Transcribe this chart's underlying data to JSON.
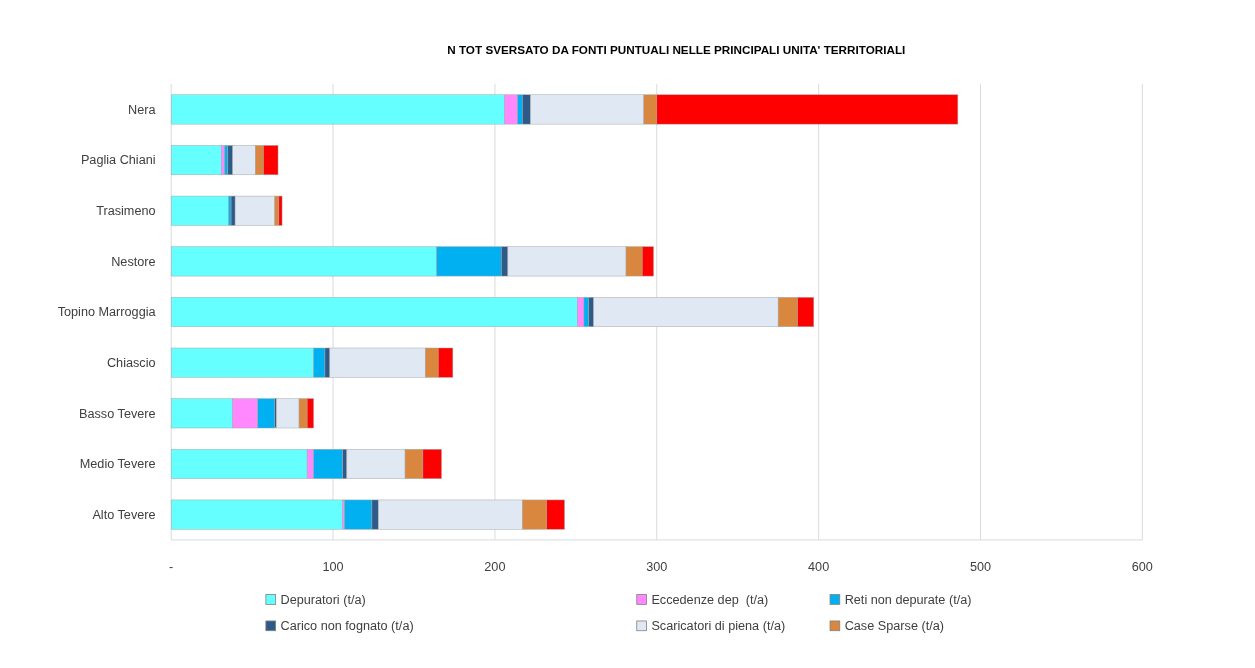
{
  "chart_data": {
    "type": "bar",
    "orientation": "horizontal",
    "stacked": true,
    "title": "N TOT SVERSATO DA FONTI PUNTUALI NELLE PRINCIPALI UNITA' TERRITORIALI",
    "categories": [
      "Nera",
      "Paglia Chiani",
      "Trasimeno",
      "Nestore",
      "Topino Marroggia",
      "Chiascio",
      "Basso Tevere",
      "Medio Tevere",
      "Alto Tevere"
    ],
    "series": [
      {
        "name": "Depuratori (t/a)",
        "color": "#66ffff",
        "values": [
          206,
          31,
          35.5,
          164,
          251,
          88,
          38,
          84,
          106
        ]
      },
      {
        "name": "Eccedenze dep  (t/a)",
        "color": "#ff88ff",
        "values": [
          8,
          2,
          0,
          0,
          4,
          0,
          15.5,
          4,
          1
        ]
      },
      {
        "name": "Reti non depurate (t/a)",
        "color": "#00b0f0",
        "values": [
          3,
          2,
          1.5,
          40,
          3,
          7,
          10.5,
          18,
          17
        ]
      },
      {
        "name": "Carico non fognato (t/a)",
        "color": "#2e5a8a",
        "values": [
          5,
          3,
          2.5,
          4,
          3,
          3,
          1,
          2.5,
          4
        ]
      },
      {
        "name": "Scaricatori di piena (t/a)",
        "color": "#dfe8f3",
        "values": [
          70,
          14,
          24.5,
          73,
          114,
          59,
          14,
          36,
          89
        ]
      },
      {
        "name": "Case Sparse (t/a)",
        "color": "#d9873f",
        "values": [
          8,
          5,
          2.5,
          10,
          12,
          8,
          5,
          11,
          15
        ]
      },
      {
        "color": "#ff0000",
        "values": [
          186,
          9,
          2,
          7,
          10,
          9,
          4,
          11.5,
          11
        ]
      }
    ],
    "xlim": [
      0,
      600
    ],
    "xticks": [
      {
        "value": 0,
        "label": "-"
      },
      100,
      200,
      300,
      400,
      500,
      600
    ],
    "grid": "x",
    "legend": "bottom"
  }
}
